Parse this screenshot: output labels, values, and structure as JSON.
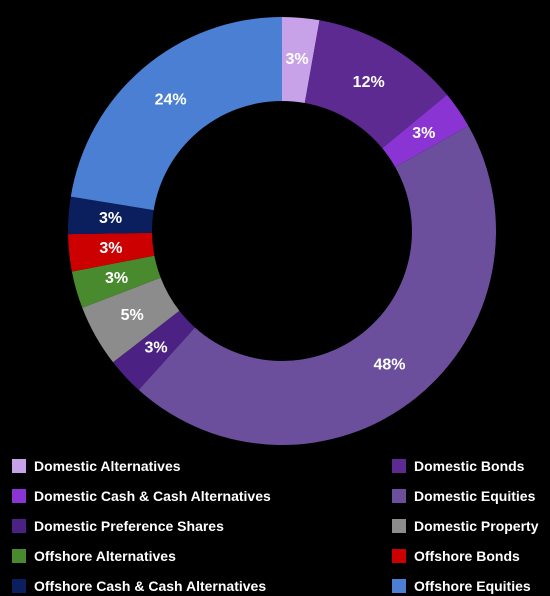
{
  "chart_data": {
    "type": "pie",
    "donut": true,
    "title": "",
    "legend_position": "bottom",
    "categories": [
      "Domestic Alternatives",
      "Domestic Bonds",
      "Domestic Cash & Cash Alternatives",
      "Domestic Equities",
      "Domestic Preference Shares",
      "Domestic Property",
      "Offshore Alternatives",
      "Offshore Bonds",
      "Offshore Cash & Cash Alternatives",
      "Offshore Equities"
    ],
    "values": [
      3,
      12,
      3,
      48,
      3,
      5,
      3,
      3,
      3,
      24
    ],
    "data_labels": [
      "3%",
      "12%",
      "3%",
      "48%",
      "3%",
      "5%",
      "3%",
      "3%",
      "3%",
      "24%"
    ],
    "colors": [
      "#c8a2e8",
      "#5c2a91",
      "#8a35d3",
      "#6b4f9c",
      "#4b2283",
      "#8c8c8c",
      "#4a8a2e",
      "#cc0000",
      "#0b1f5e",
      "#4a7fd4"
    ]
  }
}
